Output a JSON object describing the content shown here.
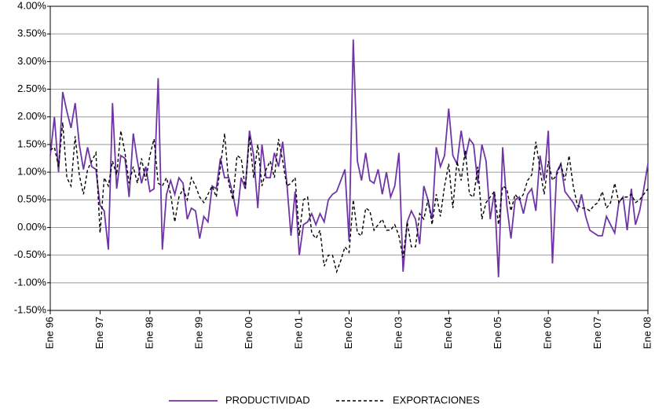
{
  "chart_data": {
    "type": "line",
    "categories": [
      "Ene 96",
      null,
      null,
      null,
      null,
      null,
      null,
      null,
      null,
      null,
      null,
      null,
      "Ene 97",
      null,
      null,
      null,
      null,
      null,
      null,
      null,
      null,
      null,
      null,
      null,
      "Ene 98",
      null,
      null,
      null,
      null,
      null,
      null,
      null,
      null,
      null,
      null,
      null,
      "Ene 99",
      null,
      null,
      null,
      null,
      null,
      null,
      null,
      null,
      null,
      null,
      null,
      "Ene 00",
      null,
      null,
      null,
      null,
      null,
      null,
      null,
      null,
      null,
      null,
      null,
      "Ene 01",
      null,
      null,
      null,
      null,
      null,
      null,
      null,
      null,
      null,
      null,
      null,
      "Ene 02",
      null,
      null,
      null,
      null,
      null,
      null,
      null,
      null,
      null,
      null,
      null,
      "Ene 03",
      null,
      null,
      null,
      null,
      null,
      null,
      null,
      null,
      null,
      null,
      null,
      "Ene 04",
      null,
      null,
      null,
      null,
      null,
      null,
      null,
      null,
      null,
      null,
      null,
      "Ene 05",
      null,
      null,
      null,
      null,
      null,
      null,
      null,
      null,
      null,
      null,
      null,
      "Ene 06",
      null,
      null,
      null,
      null,
      null,
      null,
      null,
      null,
      null,
      null,
      null,
      "Ene 07",
      null,
      null,
      null,
      null,
      null,
      null,
      null,
      null,
      null,
      null,
      null,
      "Ene 08"
    ],
    "series": [
      {
        "name": "PRODUCTIVIDAD",
        "color": "#6f35a5",
        "dash": "none",
        "values": [
          1.3,
          2.0,
          1.0,
          2.45,
          2.1,
          1.8,
          2.25,
          1.5,
          1.05,
          1.45,
          1.1,
          1.05,
          0.4,
          0.3,
          -0.4,
          2.25,
          0.7,
          1.3,
          1.25,
          0.55,
          1.7,
          1.2,
          0.8,
          1.1,
          0.65,
          0.7,
          2.7,
          -0.4,
          0.6,
          0.85,
          0.6,
          0.9,
          0.8,
          0.15,
          0.35,
          0.3,
          -0.2,
          0.2,
          0.1,
          0.75,
          0.7,
          1.25,
          0.9,
          0.9,
          0.6,
          0.2,
          0.9,
          0.7,
          1.75,
          1.3,
          0.35,
          1.5,
          0.9,
          0.9,
          1.35,
          1.1,
          1.55,
          0.8,
          -0.15,
          0.65,
          -0.5,
          0.05,
          0.1,
          0.25,
          0.05,
          0.25,
          0.1,
          0.5,
          0.6,
          0.65,
          0.85,
          1.05,
          -0.25,
          3.4,
          1.2,
          0.85,
          1.35,
          0.85,
          0.8,
          1.05,
          0.6,
          1.0,
          0.55,
          0.75,
          1.35,
          -0.8,
          0.1,
          0.3,
          0.15,
          -0.3,
          0.75,
          0.5,
          0.15,
          1.45,
          1.1,
          1.3,
          2.15,
          1.3,
          1.15,
          1.75,
          1.25,
          1.6,
          1.5,
          0.8,
          1.5,
          1.2,
          0.15,
          0.65,
          -0.9,
          1.45,
          0.4,
          -0.2,
          0.5,
          0.55,
          0.25,
          0.6,
          0.7,
          0.3,
          1.3,
          0.85,
          1.75,
          -0.65,
          1.0,
          1.15,
          0.65,
          0.55,
          0.45,
          0.3,
          0.6,
          0.2,
          -0.05,
          -0.1,
          -0.15,
          -0.15,
          0.2,
          0.05,
          -0.1,
          0.45,
          0.55,
          -0.05,
          0.7,
          0.05,
          0.3,
          0.7,
          1.15
        ]
      },
      {
        "name": "EXPORTACIONES",
        "color": "#000000",
        "dash": "4 3",
        "values": [
          1.4,
          1.45,
          1.1,
          1.9,
          0.9,
          0.75,
          1.65,
          0.95,
          0.6,
          1.05,
          1.2,
          1.35,
          -0.1,
          0.9,
          0.75,
          1.2,
          0.95,
          1.75,
          1.35,
          0.8,
          1.1,
          0.8,
          1.25,
          0.85,
          1.3,
          1.6,
          0.8,
          0.75,
          0.9,
          0.6,
          0.1,
          0.55,
          0.7,
          0.5,
          0.9,
          0.75,
          0.55,
          0.45,
          0.6,
          0.75,
          0.55,
          1.1,
          1.7,
          0.8,
          0.5,
          1.3,
          1.25,
          0.7,
          1.65,
          0.9,
          1.5,
          0.75,
          1.05,
          1.2,
          0.9,
          1.6,
          1.2,
          0.75,
          0.8,
          0.9,
          -0.15,
          0.5,
          0.55,
          -0.1,
          -0.2,
          -0.05,
          -0.7,
          -0.5,
          -0.5,
          -0.8,
          -0.6,
          -0.35,
          -0.45,
          0.5,
          -0.1,
          -0.15,
          0.35,
          0.3,
          -0.05,
          0.05,
          0.15,
          -0.05,
          -0.05,
          0.05,
          -0.15,
          -0.55,
          0.1,
          -0.35,
          -0.35,
          0.25,
          0.15,
          0.5,
          0.05,
          0.6,
          0.2,
          0.75,
          1.15,
          0.35,
          1.2,
          0.85,
          1.4,
          0.6,
          0.55,
          1.1,
          0.15,
          0.45,
          0.55,
          0.65,
          0.05,
          0.75,
          0.7,
          0.3,
          0.6,
          0.5,
          0.6,
          0.85,
          0.95,
          1.55,
          1.05,
          0.6,
          1.2,
          0.85,
          0.95,
          1.15,
          0.85,
          1.3,
          0.75,
          0.4,
          0.35,
          0.35,
          0.3,
          0.4,
          0.45,
          0.65,
          0.35,
          0.45,
          0.8,
          0.45,
          0.55,
          0.55,
          0.6,
          0.45,
          0.5,
          0.6,
          0.7
        ]
      }
    ],
    "ylim": [
      -1.5,
      4
    ],
    "yticks": [
      {
        "value": 4,
        "label": "4.00%"
      },
      {
        "value": 3.5,
        "label": "3.50%"
      },
      {
        "value": 3,
        "label": "3.00%"
      },
      {
        "value": 2.5,
        "label": "2.50%"
      },
      {
        "value": 2,
        "label": "2.00%"
      },
      {
        "value": 1.5,
        "label": "1.50%"
      },
      {
        "value": 1,
        "label": "1.00%"
      },
      {
        "value": 0.5,
        "label": "0.50%"
      },
      {
        "value": 0,
        "label": "0.00%"
      },
      {
        "value": -0.5,
        "label": "-0.50%"
      },
      {
        "value": -1,
        "label": "-1.00%"
      },
      {
        "value": -1.5,
        "label": "-1.50%"
      }
    ],
    "grid": true,
    "legend": "bottom"
  }
}
